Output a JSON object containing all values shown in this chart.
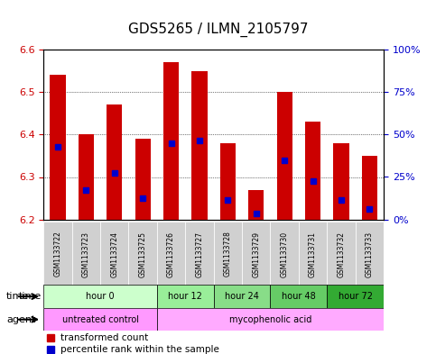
{
  "title": "GDS5265 / ILMN_2105797",
  "samples": [
    "GSM1133722",
    "GSM1133723",
    "GSM1133724",
    "GSM1133725",
    "GSM1133726",
    "GSM1133727",
    "GSM1133728",
    "GSM1133729",
    "GSM1133730",
    "GSM1133731",
    "GSM1133732",
    "GSM1133733"
  ],
  "bar_bottoms": [
    6.2,
    6.2,
    6.2,
    6.2,
    6.2,
    6.2,
    6.2,
    6.2,
    6.2,
    6.2,
    6.2,
    6.2
  ],
  "bar_tops": [
    6.54,
    6.4,
    6.47,
    6.39,
    6.57,
    6.55,
    6.38,
    6.27,
    6.5,
    6.43,
    6.38,
    6.35
  ],
  "percentile_vals": [
    6.37,
    6.27,
    6.31,
    6.25,
    6.38,
    6.385,
    6.245,
    6.215,
    6.34,
    6.29,
    6.245,
    6.225
  ],
  "ylim_left": [
    6.2,
    6.6
  ],
  "ylim_right": [
    0,
    100
  ],
  "yticks_left": [
    6.2,
    6.3,
    6.4,
    6.5,
    6.6
  ],
  "yticks_right": [
    0,
    25,
    50,
    75,
    100
  ],
  "ytick_labels_right": [
    "0%",
    "25%",
    "50%",
    "75%",
    "100%"
  ],
  "bar_color": "#cc0000",
  "percentile_color": "#0000cc",
  "grid_color": "#000000",
  "time_groups": [
    {
      "label": "hour 0",
      "start": 0,
      "end": 4,
      "color": "#ccffcc"
    },
    {
      "label": "hour 12",
      "start": 4,
      "end": 6,
      "color": "#99ee99"
    },
    {
      "label": "hour 24",
      "start": 6,
      "end": 8,
      "color": "#88dd88"
    },
    {
      "label": "hour 48",
      "start": 8,
      "end": 10,
      "color": "#66cc66"
    },
    {
      "label": "hour 72",
      "start": 10,
      "end": 12,
      "color": "#33aa33"
    }
  ],
  "agent_groups": [
    {
      "label": "untreated control",
      "start": 0,
      "end": 4,
      "color": "#ff99ff"
    },
    {
      "label": "mycophenolic acid",
      "start": 4,
      "end": 12,
      "color": "#ffaaff"
    }
  ],
  "legend_items": [
    {
      "label": "transformed count",
      "color": "#cc0000"
    },
    {
      "label": "percentile rank within the sample",
      "color": "#0000cc"
    }
  ],
  "title_fontsize": 11,
  "axis_label_color_left": "#cc0000",
  "axis_label_color_right": "#0000cc",
  "tick_fontsize": 8,
  "sample_fontsize": 7,
  "annotation_fontsize": 8
}
